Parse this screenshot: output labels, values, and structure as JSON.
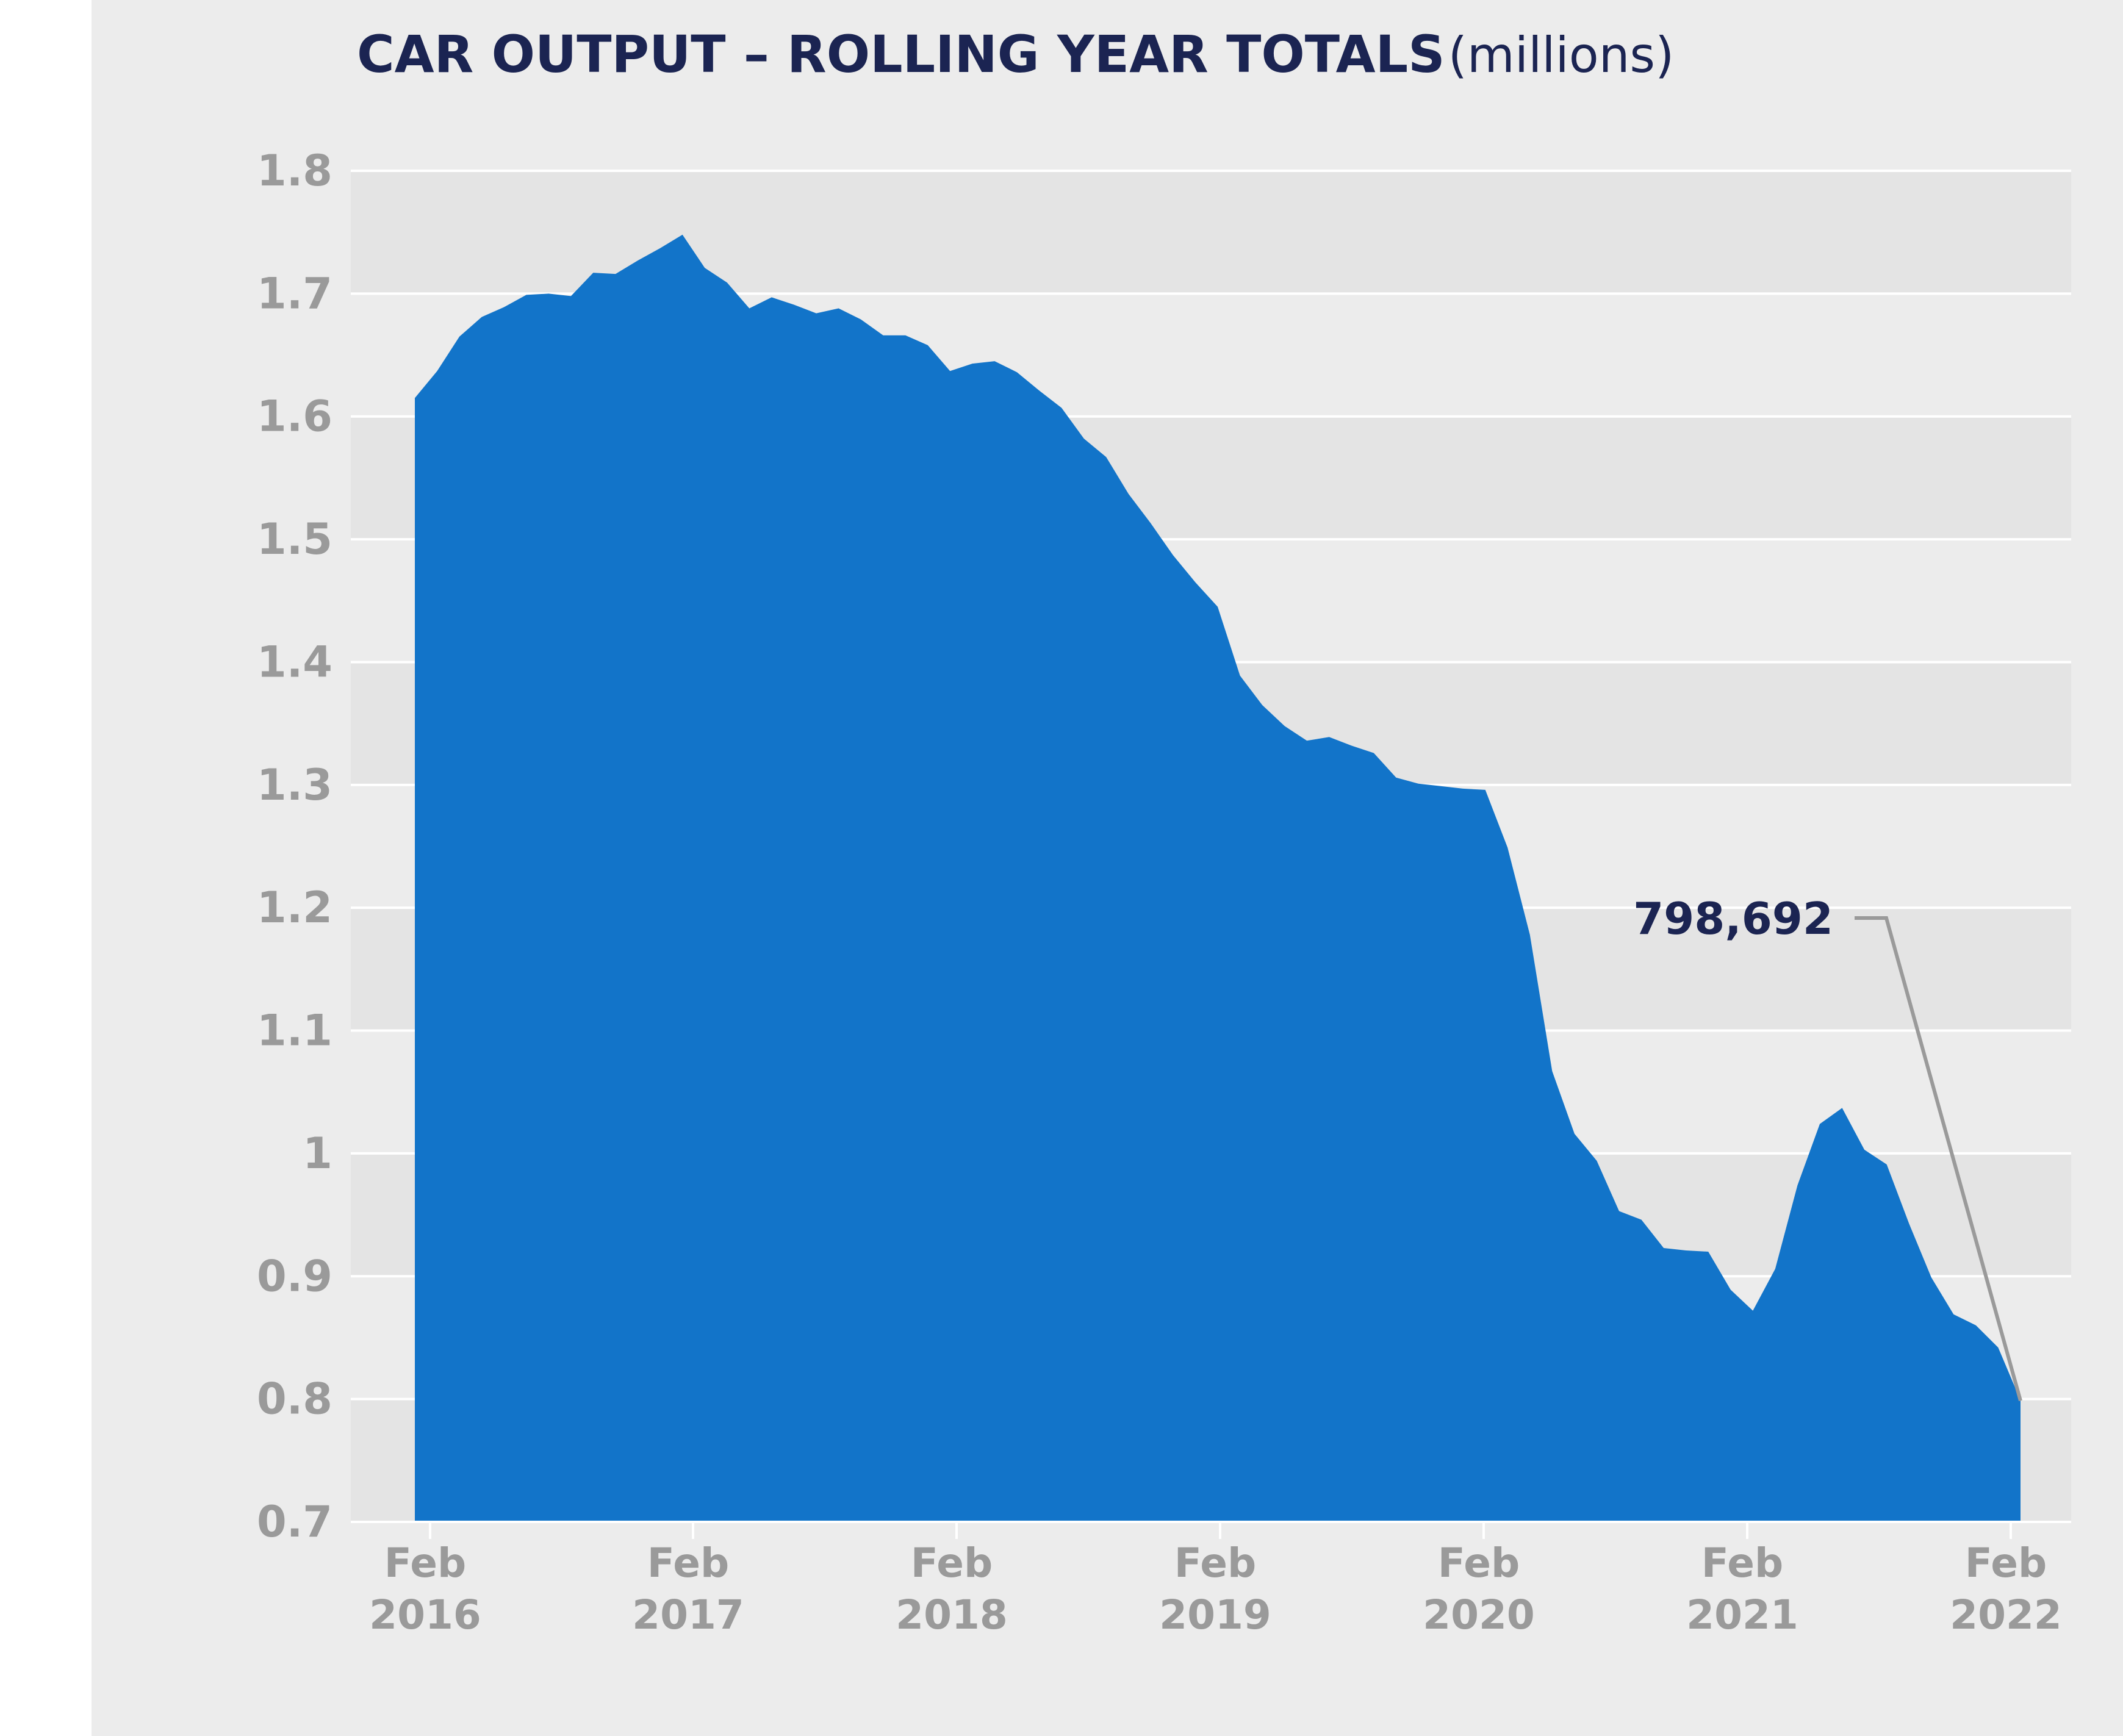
{
  "chart_data": {
    "type": "area",
    "title": "CAR OUTPUT – ROLLING YEAR TOTALS",
    "title_unit": "(millions)",
    "xlabel": "",
    "ylabel": "",
    "ylim": [
      0.7,
      1.8
    ],
    "yticks": [
      "1.8",
      "1.7",
      "1.6",
      "1.5",
      "1.4",
      "1.3",
      "1.2",
      "1.1",
      "1",
      "0.9",
      "0.8",
      "0.7"
    ],
    "ytick_values": [
      1.8,
      1.7,
      1.6,
      1.5,
      1.4,
      1.3,
      1.2,
      1.1,
      1.0,
      0.9,
      0.8,
      0.7
    ],
    "xticks": [
      {
        "month": "Feb",
        "year": "2016"
      },
      {
        "month": "Feb",
        "year": "2017"
      },
      {
        "month": "Feb",
        "year": "2018"
      },
      {
        "month": "Feb",
        "year": "2019"
      },
      {
        "month": "Feb",
        "year": "2020"
      },
      {
        "month": "Feb",
        "year": "2021"
      },
      {
        "month": "Feb",
        "year": "2022"
      }
    ],
    "grid": true,
    "banded_background": true,
    "area_color": "#1274c9",
    "band_color": "#e4e4e4",
    "background_color": "#ececec",
    "title_color": "#1b2452",
    "tick_color": "#9a9a9a",
    "x": [
      "2016-02",
      "2016-03",
      "2016-04",
      "2016-05",
      "2016-06",
      "2016-07",
      "2016-08",
      "2016-09",
      "2016-10",
      "2016-11",
      "2016-12",
      "2017-01",
      "2017-02",
      "2017-03",
      "2017-04",
      "2017-05",
      "2017-06",
      "2017-07",
      "2017-08",
      "2017-09",
      "2017-10",
      "2017-11",
      "2017-12",
      "2018-01",
      "2018-02",
      "2018-03",
      "2018-04",
      "2018-05",
      "2018-06",
      "2018-07",
      "2018-08",
      "2018-09",
      "2018-10",
      "2018-11",
      "2018-12",
      "2019-01",
      "2019-02",
      "2019-03",
      "2019-04",
      "2019-05",
      "2019-06",
      "2019-07",
      "2019-08",
      "2019-09",
      "2019-10",
      "2019-11",
      "2019-12",
      "2020-01",
      "2020-02",
      "2020-03",
      "2020-04",
      "2020-05",
      "2020-06",
      "2020-07",
      "2020-08",
      "2020-09",
      "2020-10",
      "2020-11",
      "2020-12",
      "2021-01",
      "2021-02",
      "2021-03",
      "2021-04",
      "2021-05",
      "2021-06",
      "2021-07",
      "2021-08",
      "2021-09",
      "2021-10",
      "2021-11",
      "2021-12",
      "2022-01",
      "2022-02"
    ],
    "values": [
      1.615,
      1.637,
      1.665,
      1.681,
      1.689,
      1.699,
      1.7,
      1.698,
      1.717,
      1.716,
      1.727,
      1.737,
      1.748,
      1.721,
      1.709,
      1.688,
      1.697,
      1.691,
      1.684,
      1.688,
      1.679,
      1.666,
      1.666,
      1.658,
      1.637,
      1.643,
      1.645,
      1.636,
      1.621,
      1.607,
      1.582,
      1.567,
      1.537,
      1.513,
      1.487,
      1.465,
      1.445,
      1.389,
      1.365,
      1.348,
      1.336,
      1.339,
      1.332,
      1.326,
      1.306,
      1.301,
      1.299,
      1.297,
      1.296,
      1.249,
      1.178,
      1.067,
      1.016,
      0.994,
      0.953,
      0.946,
      0.923,
      0.921,
      0.92,
      0.889,
      0.872,
      0.906,
      0.974,
      1.024,
      1.037,
      1.003,
      0.991,
      0.943,
      0.899,
      0.869,
      0.86,
      0.842,
      0.799
    ],
    "annotation": {
      "label": "798,692",
      "x": "2022-02",
      "value": 0.798692
    }
  }
}
